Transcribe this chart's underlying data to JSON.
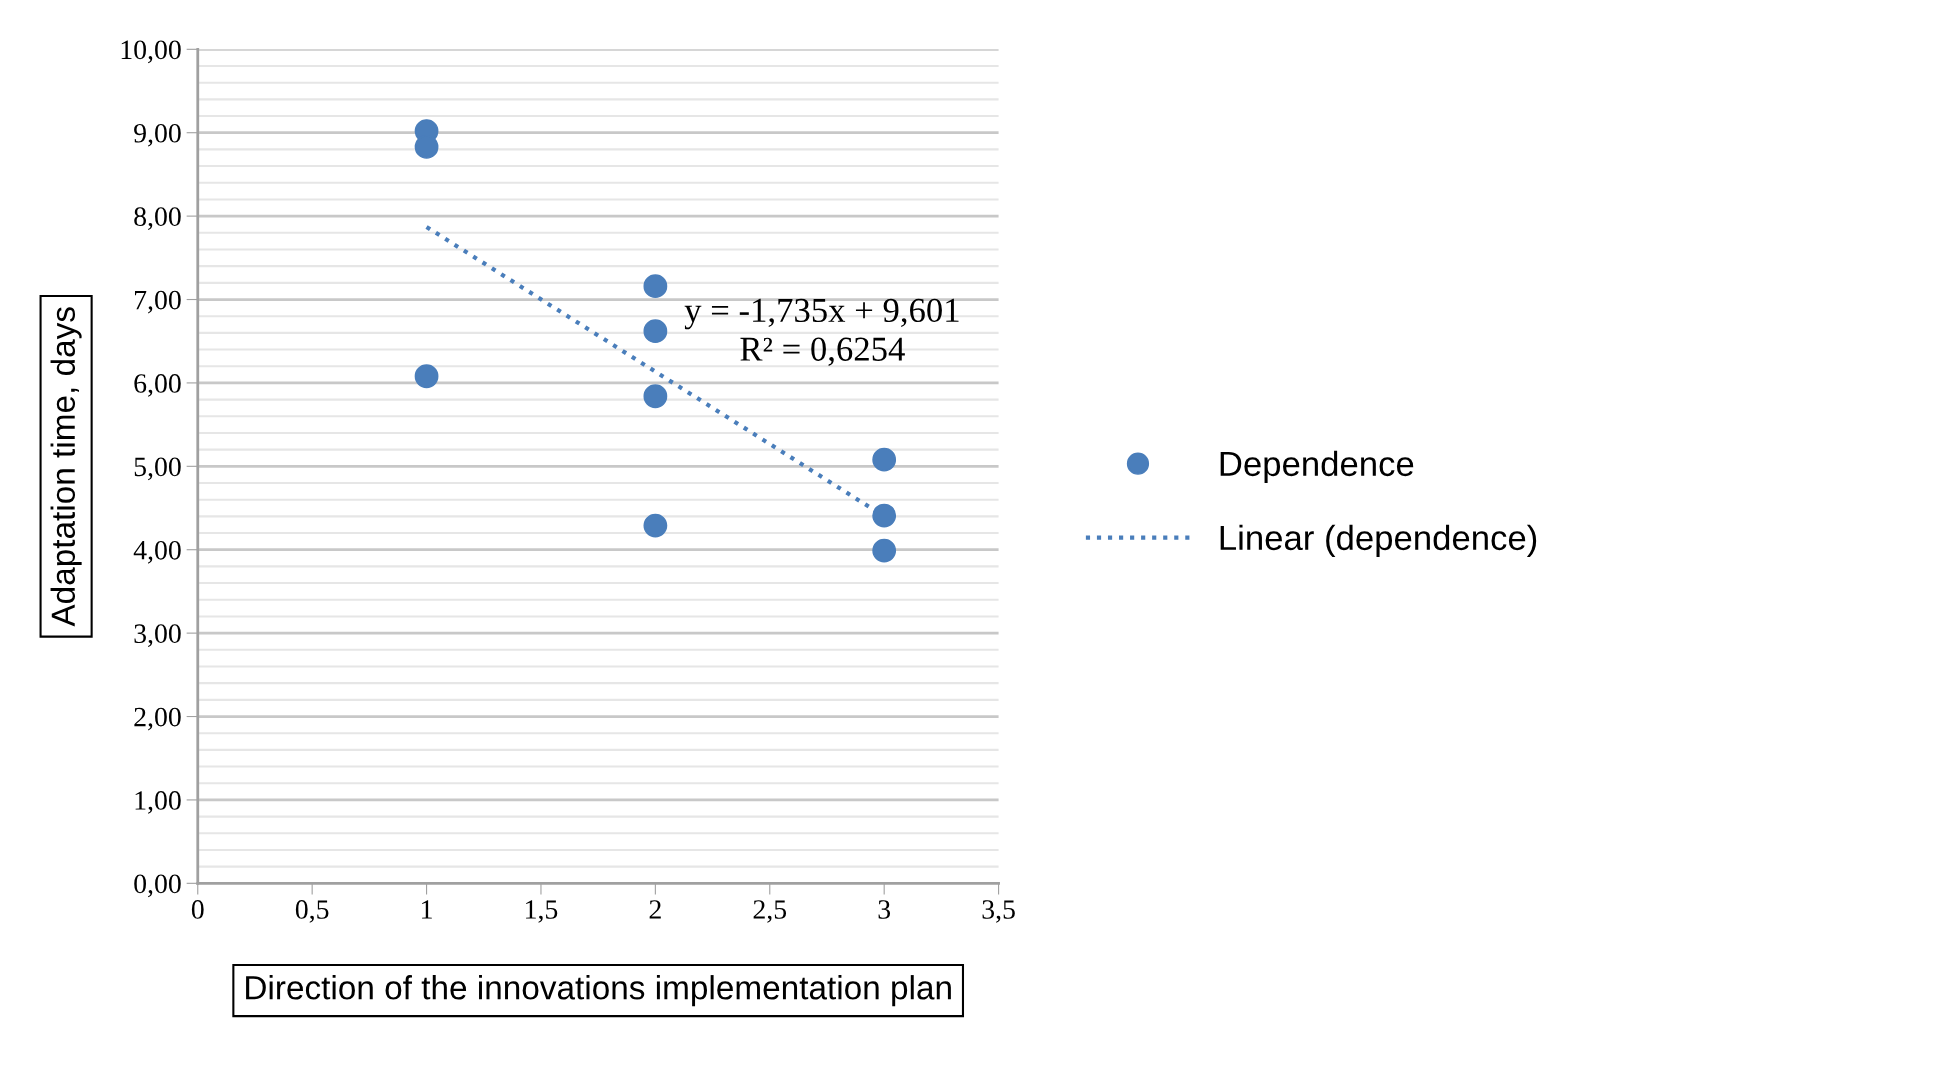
{
  "chart_data": {
    "type": "scatter",
    "xlabel": "Direction of the innovations implementation plan",
    "ylabel": "Adaptation time, days",
    "series": [
      {
        "name": "Dependence",
        "color": "#4a7ebb",
        "marker": "circle",
        "x": [
          1,
          1,
          1,
          2,
          2,
          2,
          2,
          3,
          3,
          3
        ],
        "values": [
          9.02,
          8.83,
          6.08,
          7.16,
          6.62,
          5.84,
          4.29,
          5.08,
          4.41,
          3.99
        ]
      },
      {
        "name": "Linear (dependence)",
        "type": "line",
        "color": "#4a7ebb",
        "line_style": "dotted",
        "marker": "none",
        "x": [
          1,
          3
        ],
        "values": [
          7.87,
          4.4
        ]
      }
    ],
    "annotations": [
      "y = -1,735x + 9,601\nR² = 0,6254"
    ],
    "xlim": [
      0,
      3.5
    ],
    "xticks": [
      0,
      {
        "value": 0.5,
        "label": "0,5"
      },
      1,
      {
        "value": 1.5,
        "label": "1,5"
      },
      2,
      {
        "value": 2.5,
        "label": "2,5"
      },
      3,
      {
        "value": 3.5,
        "label": "3,5"
      }
    ],
    "ylim": [
      0,
      10
    ],
    "yticks": [
      {
        "value": 0,
        "label": "0,00"
      },
      {
        "value": 1,
        "label": "1,00"
      },
      {
        "value": 2,
        "label": "2,00"
      },
      {
        "value": 3,
        "label": "3,00"
      },
      {
        "value": 4,
        "label": "4,00"
      },
      {
        "value": 5,
        "label": "5,00"
      },
      {
        "value": 6,
        "label": "6,00"
      },
      {
        "value": 7,
        "label": "7,00"
      },
      {
        "value": 8,
        "label": "8,00"
      },
      {
        "value": 9,
        "label": "9,00"
      },
      {
        "value": 10,
        "label": "10,00"
      }
    ],
    "grid": "y",
    "legend": "right"
  }
}
